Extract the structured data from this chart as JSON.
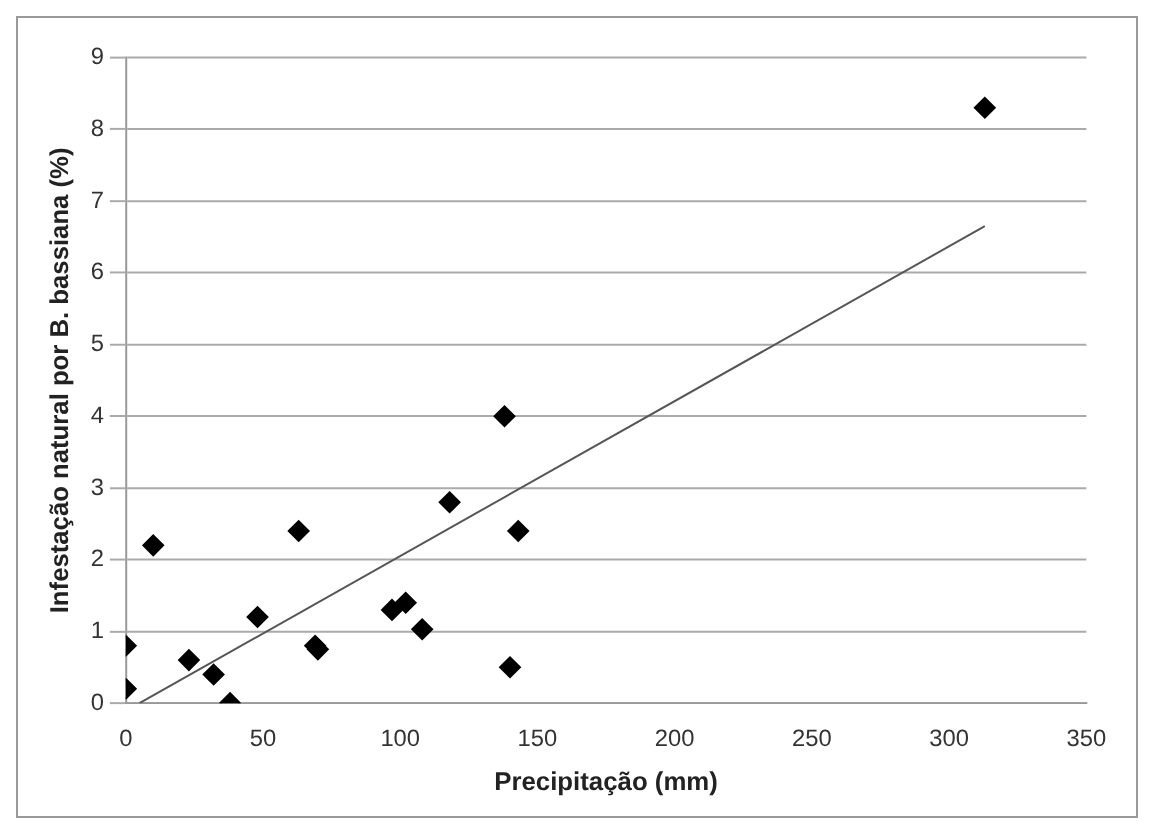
{
  "chart_data": {
    "type": "scatter",
    "xlabel": "Precipitação (mm)",
    "ylabel": "Infestação natural por B. bassiana (%)",
    "xlim": [
      0,
      350
    ],
    "xticks": [
      0,
      50,
      100,
      150,
      200,
      250,
      300,
      350
    ],
    "ylim": [
      0,
      9
    ],
    "yticks": [
      0,
      1,
      2,
      3,
      4,
      5,
      6,
      7,
      8,
      9
    ],
    "grid": "y",
    "legend": false,
    "marker": "diamond",
    "series": [
      {
        "type": "scatter",
        "color": "#000000",
        "x": [
          0,
          0,
          10,
          23,
          32,
          38,
          48,
          63,
          69,
          70,
          97,
          102,
          108,
          118,
          138,
          140,
          143,
          313
        ],
        "values": [
          0.2,
          0.8,
          2.2,
          0.6,
          0.4,
          0,
          1.2,
          2.4,
          0.8,
          0.75,
          1.3,
          1.4,
          1.03,
          2.8,
          4.0,
          0.5,
          2.4,
          8.3
        ]
      },
      {
        "type": "line",
        "color": "#555555",
        "x": [
          5,
          313
        ],
        "values": [
          0,
          6.65
        ],
        "marker": "none",
        "line_style": "solid"
      }
    ]
  }
}
